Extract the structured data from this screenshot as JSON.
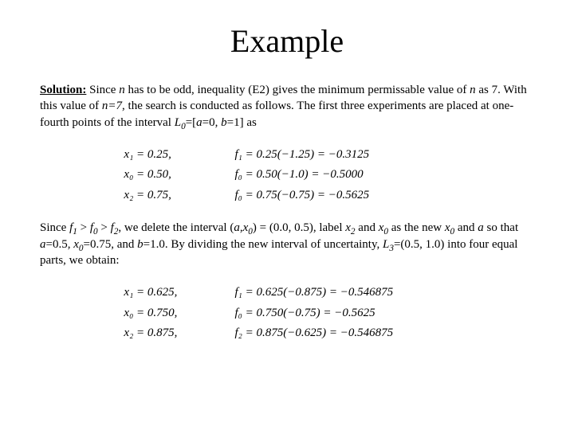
{
  "title": "Example",
  "para1": {
    "lead": "Solution:",
    "text_a": " Since ",
    "n1": "n",
    "text_b": " has to be odd, inequality (E2) gives the minimum permissable value of ",
    "n2": "n",
    "text_c": " as 7. With this value of ",
    "n3": "n=7",
    "text_d": ", the search is conducted as follows. The first three experiments are placed at one-fourth points of the interval ",
    "L0": "L",
    "L0sub": "0",
    "text_e": "=[",
    "a": "a",
    "text_f": "=0, ",
    "b": "b",
    "text_g": "=1] as"
  },
  "eqs1": [
    {
      "l": "x₁ = 0.25,",
      "r": "f₁ = 0.25(−1.25) = −0.3125"
    },
    {
      "l": "x₀ = 0.50,",
      "r": "f₀ = 0.50(−1.0) = −0.5000"
    },
    {
      "l": "x₂ = 0.75,",
      "r": "f₀ = 0.75(−0.75) = −0.5625"
    }
  ],
  "para2": {
    "text_a": "Since ",
    "f1": "f",
    "f1sub": "1",
    "gt1": " > ",
    "f0": "f",
    "f0sub": "0",
    "gt2": " > ",
    "f2": "f",
    "f2sub": "2",
    "text_b": ", we delete the interval (",
    "a1": "a",
    "comma1": ",",
    "x0a": "x",
    "x0asub": "0",
    "text_c": ") = (0.0, 0.5), label ",
    "x2": "x",
    "x2sub": "2",
    "and1": " and ",
    "x0b": "x",
    "x0bsub": "0",
    "text_d": " as the new ",
    "x0c": "x",
    "x0csub": "0",
    "and2": " and ",
    "a2": "a",
    "text_e": " so that ",
    "a3": "a",
    "text_f": "=0.5, ",
    "x0d": "x",
    "x0dsub": "0",
    "text_g": "=0.75, and ",
    "b2": "b",
    "text_h": "=1.0. By dividing the new interval of uncertainty, ",
    "L3": "L",
    "L3sub": "3",
    "text_i": "=(0.5, 1.0) into four equal parts, we obtain:"
  },
  "eqs2": [
    {
      "l": "x₁ = 0.625,",
      "r": "f₁ = 0.625(−0.875) = −0.546875"
    },
    {
      "l": "x₀ = 0.750,",
      "r": "f₀ = 0.750(−0.75) = −0.5625"
    },
    {
      "l": "x₂ = 0.875,",
      "r": "f₂ = 0.875(−0.625) = −0.546875"
    }
  ]
}
